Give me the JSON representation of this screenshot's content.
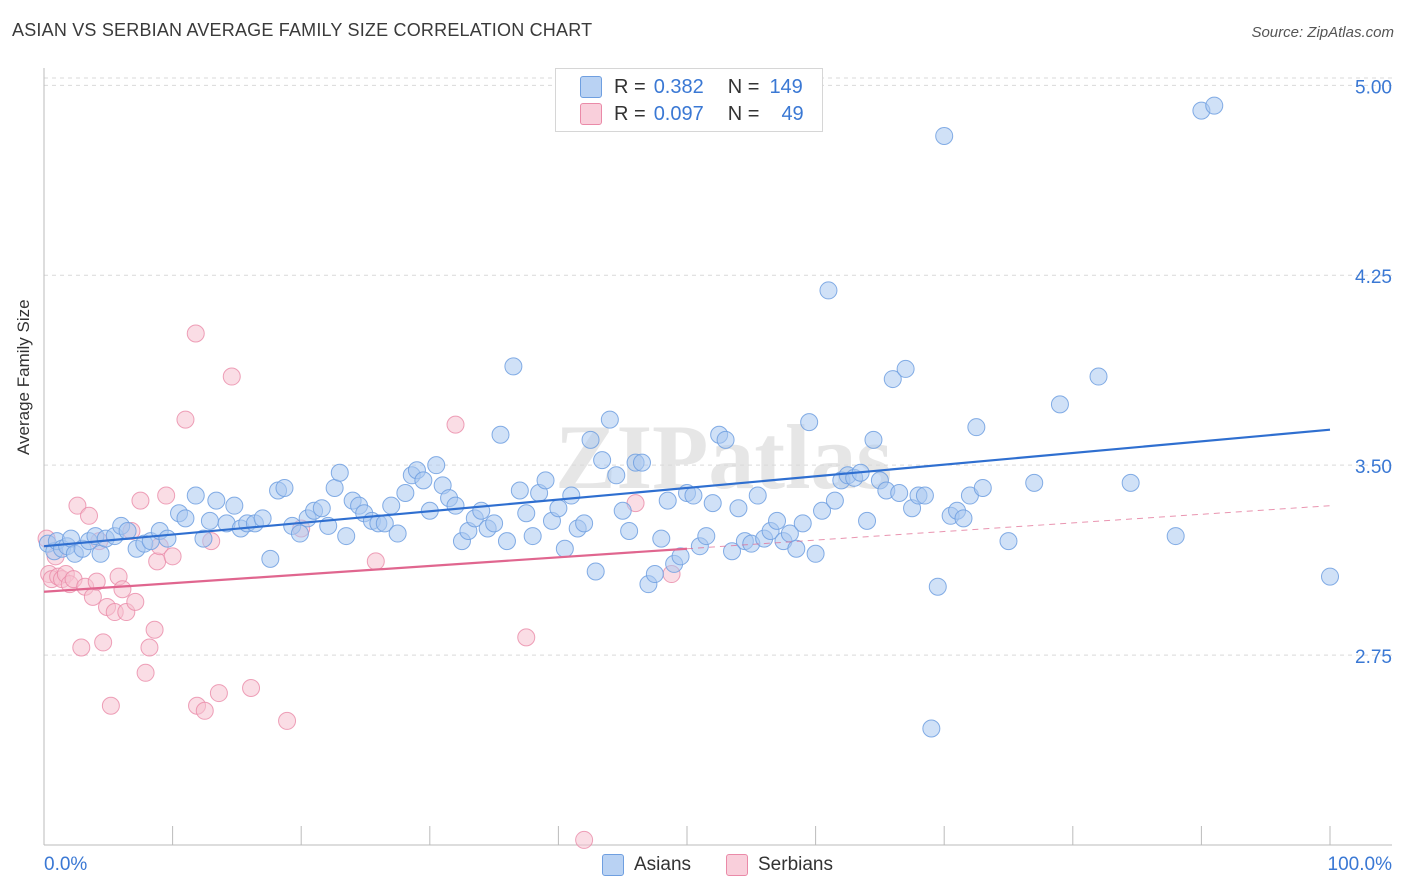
{
  "title": "ASIAN VS SERBIAN AVERAGE FAMILY SIZE CORRELATION CHART",
  "source": "Source: ZipAtlas.com",
  "watermark": "ZIPatlas",
  "legend": {
    "asians": {
      "r_label": "R =",
      "r": "0.382",
      "n_label": "N =",
      "n": "149"
    },
    "serbians": {
      "r_label": "R =",
      "r": "0.097",
      "n_label": "N =",
      "n": "49"
    }
  },
  "bottom_legend": {
    "asians": "Asians",
    "serbians": "Serbians"
  },
  "colors": {
    "asians_fill": "#aac8f0",
    "asians_stroke": "#6f9fe0",
    "asians_line": "#2f6fd0",
    "serbians_fill": "#f6c1d0",
    "serbians_stroke": "#ea8aa8",
    "serbians_line": "#e0668f",
    "tick_label": "#3a78d4",
    "grid": "#d9d9d9"
  },
  "chart_data": {
    "type": "scatter",
    "title": "ASIAN VS SERBIAN AVERAGE FAMILY SIZE CORRELATION CHART",
    "ylabel": "Average Family Size",
    "xlabel": "",
    "xlim": [
      0,
      100
    ],
    "ylim": [
      2.0,
      5.1
    ],
    "x_tick_labels": [
      "0.0%",
      "100.0%"
    ],
    "y_ticks": [
      2.75,
      3.5,
      4.25,
      5.0
    ],
    "y_tick_labels": [
      "2.75",
      "3.50",
      "4.25",
      "5.00"
    ],
    "grid": "horizontal dashed",
    "legend_position": "top-center",
    "series": [
      {
        "name": "Asians",
        "points": [
          [
            0.3,
            3.19
          ],
          [
            0.8,
            3.16
          ],
          [
            1.0,
            3.2
          ],
          [
            1.4,
            3.17
          ],
          [
            1.8,
            3.18
          ],
          [
            2.1,
            3.21
          ],
          [
            2.4,
            3.15
          ],
          [
            3.0,
            3.17
          ],
          [
            3.5,
            3.2
          ],
          [
            4.0,
            3.22
          ],
          [
            4.4,
            3.15
          ],
          [
            4.8,
            3.21
          ],
          [
            5.5,
            3.22
          ],
          [
            6.0,
            3.26
          ],
          [
            6.5,
            3.24
          ],
          [
            7.2,
            3.17
          ],
          [
            7.8,
            3.19
          ],
          [
            8.3,
            3.2
          ],
          [
            9.0,
            3.24
          ],
          [
            9.6,
            3.21
          ],
          [
            10.5,
            3.31
          ],
          [
            11.0,
            3.29
          ],
          [
            11.8,
            3.38
          ],
          [
            12.4,
            3.21
          ],
          [
            12.9,
            3.28
          ],
          [
            13.4,
            3.36
          ],
          [
            14.2,
            3.27
          ],
          [
            14.8,
            3.34
          ],
          [
            15.3,
            3.25
          ],
          [
            15.8,
            3.27
          ],
          [
            16.4,
            3.27
          ],
          [
            17.0,
            3.29
          ],
          [
            17.6,
            3.13
          ],
          [
            18.2,
            3.4
          ],
          [
            18.7,
            3.41
          ],
          [
            19.3,
            3.26
          ],
          [
            19.9,
            3.23
          ],
          [
            20.5,
            3.29
          ],
          [
            21.0,
            3.32
          ],
          [
            21.6,
            3.33
          ],
          [
            22.1,
            3.26
          ],
          [
            22.6,
            3.41
          ],
          [
            23.0,
            3.47
          ],
          [
            23.5,
            3.22
          ],
          [
            24.0,
            3.36
          ],
          [
            24.5,
            3.34
          ],
          [
            24.9,
            3.31
          ],
          [
            25.5,
            3.28
          ],
          [
            26.0,
            3.27
          ],
          [
            26.5,
            3.27
          ],
          [
            27.0,
            3.34
          ],
          [
            27.5,
            3.23
          ],
          [
            28.1,
            3.39
          ],
          [
            28.6,
            3.46
          ],
          [
            29.0,
            3.48
          ],
          [
            29.5,
            3.44
          ],
          [
            30.0,
            3.32
          ],
          [
            30.5,
            3.5
          ],
          [
            31.0,
            3.42
          ],
          [
            31.5,
            3.37
          ],
          [
            32.0,
            3.34
          ],
          [
            32.5,
            3.2
          ],
          [
            33.0,
            3.24
          ],
          [
            33.5,
            3.29
          ],
          [
            34.0,
            3.32
          ],
          [
            34.5,
            3.25
          ],
          [
            35.0,
            3.27
          ],
          [
            35.5,
            3.62
          ],
          [
            36.0,
            3.2
          ],
          [
            36.5,
            3.89
          ],
          [
            37.0,
            3.4
          ],
          [
            37.5,
            3.31
          ],
          [
            38.0,
            3.22
          ],
          [
            38.5,
            3.39
          ],
          [
            39.0,
            3.44
          ],
          [
            39.5,
            3.28
          ],
          [
            40.0,
            3.33
          ],
          [
            40.5,
            3.17
          ],
          [
            41.0,
            3.38
          ],
          [
            41.5,
            3.25
          ],
          [
            42.0,
            3.27
          ],
          [
            42.5,
            3.6
          ],
          [
            42.9,
            3.08
          ],
          [
            43.4,
            3.52
          ],
          [
            44.0,
            3.68
          ],
          [
            44.5,
            3.46
          ],
          [
            45.0,
            3.32
          ],
          [
            45.5,
            3.24
          ],
          [
            46.0,
            3.51
          ],
          [
            46.5,
            3.51
          ],
          [
            47.0,
            3.03
          ],
          [
            47.5,
            3.07
          ],
          [
            48.0,
            3.21
          ],
          [
            48.5,
            3.36
          ],
          [
            49.0,
            3.11
          ],
          [
            49.5,
            3.14
          ],
          [
            50.0,
            3.39
          ],
          [
            50.5,
            3.38
          ],
          [
            51.0,
            3.18
          ],
          [
            51.5,
            3.22
          ],
          [
            52.0,
            3.35
          ],
          [
            52.5,
            3.62
          ],
          [
            53.0,
            3.6
          ],
          [
            53.5,
            3.16
          ],
          [
            54.0,
            3.33
          ],
          [
            54.5,
            3.2
          ],
          [
            55.0,
            3.19
          ],
          [
            55.5,
            3.38
          ],
          [
            56.0,
            3.21
          ],
          [
            56.5,
            3.24
          ],
          [
            57.0,
            3.28
          ],
          [
            57.5,
            3.2
          ],
          [
            58.0,
            3.23
          ],
          [
            58.5,
            3.17
          ],
          [
            59.0,
            3.27
          ],
          [
            59.5,
            3.67
          ],
          [
            60.0,
            3.15
          ],
          [
            60.5,
            3.32
          ],
          [
            61.0,
            4.19
          ],
          [
            61.5,
            3.36
          ],
          [
            62.0,
            3.44
          ],
          [
            62.5,
            3.46
          ],
          [
            63.0,
            3.45
          ],
          [
            63.5,
            3.47
          ],
          [
            64.0,
            3.28
          ],
          [
            64.5,
            3.6
          ],
          [
            65.0,
            3.44
          ],
          [
            65.5,
            3.4
          ],
          [
            66.0,
            3.84
          ],
          [
            66.5,
            3.39
          ],
          [
            67.0,
            3.88
          ],
          [
            67.5,
            3.33
          ],
          [
            68.0,
            3.38
          ],
          [
            68.5,
            3.38
          ],
          [
            69.0,
            2.46
          ],
          [
            69.5,
            3.02
          ],
          [
            70.0,
            4.8
          ],
          [
            70.5,
            3.3
          ],
          [
            71.0,
            3.32
          ],
          [
            71.5,
            3.29
          ],
          [
            72.0,
            3.38
          ],
          [
            72.5,
            3.65
          ],
          [
            73.0,
            3.41
          ],
          [
            75.0,
            3.2
          ],
          [
            77.0,
            3.43
          ],
          [
            79.0,
            3.74
          ],
          [
            82.0,
            3.85
          ],
          [
            84.5,
            3.43
          ],
          [
            88.0,
            3.22
          ],
          [
            90.0,
            4.9
          ],
          [
            91.0,
            4.92
          ],
          [
            100.0,
            3.06
          ]
        ],
        "trend": {
          "x": [
            0,
            100
          ],
          "y": [
            3.18,
            3.64
          ]
        }
      },
      {
        "name": "Serbians",
        "points": [
          [
            0.2,
            3.21
          ],
          [
            0.4,
            3.07
          ],
          [
            0.6,
            3.05
          ],
          [
            0.9,
            3.14
          ],
          [
            1.1,
            3.06
          ],
          [
            1.4,
            3.05
          ],
          [
            1.7,
            3.07
          ],
          [
            2.0,
            3.03
          ],
          [
            2.3,
            3.05
          ],
          [
            2.6,
            3.34
          ],
          [
            2.9,
            2.78
          ],
          [
            3.2,
            3.02
          ],
          [
            3.5,
            3.3
          ],
          [
            3.8,
            2.98
          ],
          [
            4.1,
            3.04
          ],
          [
            4.3,
            3.2
          ],
          [
            4.6,
            2.8
          ],
          [
            4.9,
            2.94
          ],
          [
            5.2,
            2.55
          ],
          [
            5.5,
            2.92
          ],
          [
            5.8,
            3.06
          ],
          [
            6.1,
            3.01
          ],
          [
            6.4,
            2.92
          ],
          [
            6.8,
            3.24
          ],
          [
            7.1,
            2.96
          ],
          [
            7.5,
            3.36
          ],
          [
            7.9,
            2.68
          ],
          [
            8.2,
            2.78
          ],
          [
            8.6,
            2.85
          ],
          [
            8.8,
            3.12
          ],
          [
            9.0,
            3.18
          ],
          [
            9.5,
            3.38
          ],
          [
            10.0,
            3.14
          ],
          [
            11.0,
            3.68
          ],
          [
            11.8,
            4.02
          ],
          [
            11.9,
            2.55
          ],
          [
            12.5,
            2.53
          ],
          [
            13.0,
            3.2
          ],
          [
            13.6,
            2.6
          ],
          [
            14.6,
            3.85
          ],
          [
            16.1,
            2.62
          ],
          [
            18.9,
            2.49
          ],
          [
            20.0,
            3.25
          ],
          [
            25.8,
            3.12
          ],
          [
            32.0,
            3.66
          ],
          [
            37.5,
            2.82
          ],
          [
            42.0,
            2.02
          ],
          [
            46.0,
            3.35
          ],
          [
            48.8,
            3.07
          ]
        ],
        "trend": {
          "x": [
            0,
            50
          ],
          "y": [
            3.0,
            3.17
          ]
        },
        "trend_dashed": {
          "x": [
            50,
            100
          ],
          "y": [
            3.17,
            3.34
          ]
        }
      }
    ]
  }
}
